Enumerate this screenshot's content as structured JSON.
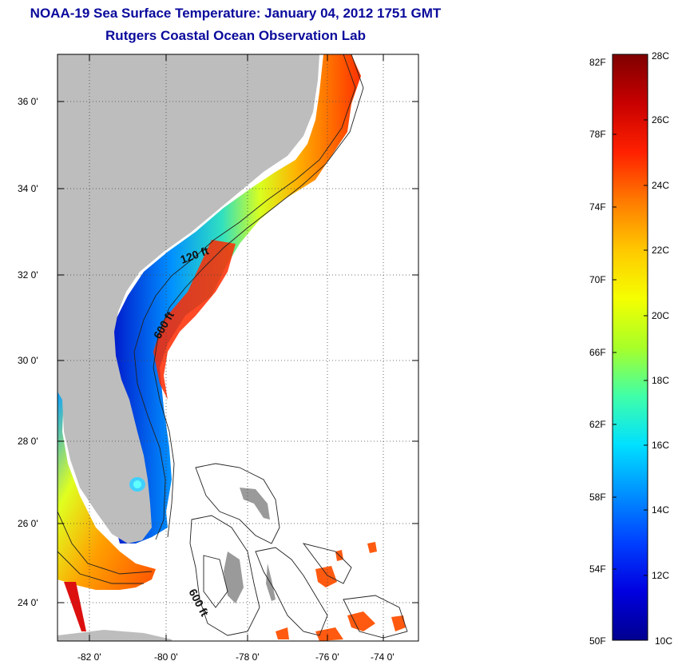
{
  "header": {
    "title": "NOAA-19 Sea Surface Temperature:  January 04, 2012 1751 GMT",
    "subtitle": "Rutgers Coastal Ocean Observation Lab"
  },
  "map": {
    "lat_labels": [
      "36 0'",
      "34 0'",
      "32 0'",
      "30 0'",
      "28 0'",
      "26 0'",
      "24 0'"
    ],
    "lon_labels": [
      "-82 0'",
      "-80 0'",
      "-78 0'",
      "-76 0'",
      "-74 0'"
    ],
    "contours": {
      "shelf_120": "120 ft",
      "shelf_600": "600 ft",
      "bahamas_600": "600 ft"
    },
    "colors": {
      "land": "#bdbdbd",
      "gap": "#ffffff"
    }
  },
  "colorbar": {
    "f_labels": [
      "82F",
      "78F",
      "74F",
      "70F",
      "66F",
      "62F",
      "58F",
      "54F",
      "50F"
    ],
    "c_labels": [
      "28C",
      "26C",
      "24C",
      "22C",
      "20C",
      "18C",
      "16C",
      "14C",
      "12C",
      "10C"
    ],
    "stops": [
      "#7f0000",
      "#c80000",
      "#ff2000",
      "#ff7a00",
      "#ffc800",
      "#f5ff00",
      "#a8ff28",
      "#40ffa8",
      "#00e0ff",
      "#0090ff",
      "#0040ff",
      "#0000e0",
      "#00008f"
    ]
  }
}
